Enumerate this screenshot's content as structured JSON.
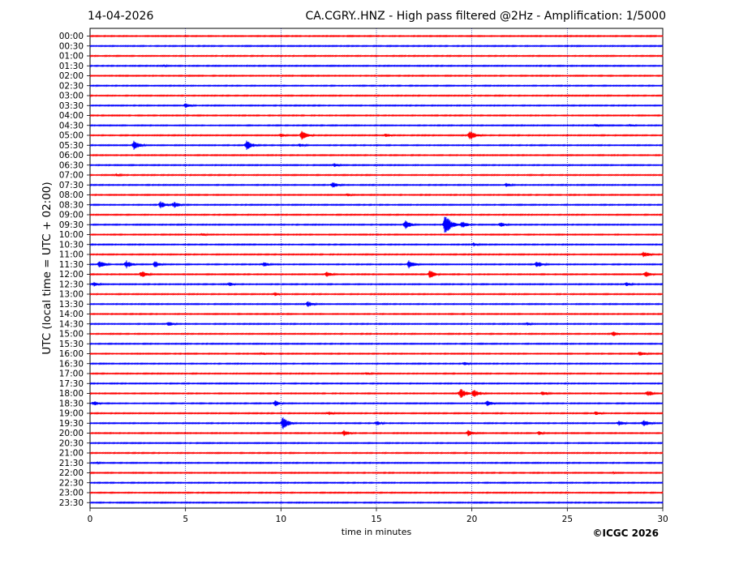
{
  "header": {
    "date": "14-04-2026",
    "title": "CA.CGRY..HNZ - High pass filtered @2Hz - Amplification: 1/5000"
  },
  "credit": "©ICGC 2026",
  "chart_data": {
    "type": "line",
    "title": "CA.CGRY..HNZ - High pass filtered @2Hz - Amplification: 1/5000",
    "xlabel": "time in minutes",
    "ylabel": "UTC (local time = UTC + 02:00)",
    "xlim": [
      0,
      30
    ],
    "xticks": [
      0,
      5,
      10,
      15,
      20,
      25,
      30
    ],
    "grid": "vertical dotted lines at 5, 10, 15, 20, 25",
    "trace_colors": [
      "#ff0000",
      "#0000ff"
    ],
    "rows": [
      "00:00",
      "00:30",
      "01:00",
      "01:30",
      "02:00",
      "02:30",
      "03:00",
      "03:30",
      "04:00",
      "04:30",
      "05:00",
      "05:30",
      "06:00",
      "06:30",
      "07:00",
      "07:30",
      "08:00",
      "08:30",
      "09:00",
      "09:30",
      "10:00",
      "10:30",
      "11:00",
      "11:30",
      "12:00",
      "12:30",
      "13:00",
      "13:30",
      "14:00",
      "14:30",
      "15:00",
      "15:30",
      "16:00",
      "16:30",
      "17:00",
      "17:30",
      "18:00",
      "18:30",
      "19:00",
      "19:30",
      "20:00",
      "20:30",
      "21:00",
      "21:30",
      "22:00",
      "22:30",
      "23:00",
      "23:30"
    ],
    "events": [
      {
        "row": "01:30",
        "t": 3.9,
        "amp": 0.2
      },
      {
        "row": "03:30",
        "t": 5.0,
        "amp": 0.5
      },
      {
        "row": "04:30",
        "t": 26.5,
        "amp": 0.3
      },
      {
        "row": "04:30",
        "t": 28.3,
        "amp": 0.3
      },
      {
        "row": "05:00",
        "t": 10.0,
        "amp": 0.4
      },
      {
        "row": "05:00",
        "t": 11.1,
        "amp": 0.9
      },
      {
        "row": "05:00",
        "t": 15.5,
        "amp": 0.4
      },
      {
        "row": "05:00",
        "t": 19.9,
        "amp": 1.0
      },
      {
        "row": "05:30",
        "t": 2.3,
        "amp": 0.9
      },
      {
        "row": "05:30",
        "t": 8.2,
        "amp": 1.0
      },
      {
        "row": "05:30",
        "t": 11.0,
        "amp": 0.4
      },
      {
        "row": "06:30",
        "t": 12.8,
        "amp": 0.4
      },
      {
        "row": "07:00",
        "t": 1.4,
        "amp": 0.3
      },
      {
        "row": "07:30",
        "t": 12.7,
        "amp": 0.6
      },
      {
        "row": "07:30",
        "t": 21.8,
        "amp": 0.4
      },
      {
        "row": "08:00",
        "t": 13.5,
        "amp": 0.3
      },
      {
        "row": "08:30",
        "t": 3.7,
        "amp": 0.7
      },
      {
        "row": "08:30",
        "t": 4.4,
        "amp": 0.6
      },
      {
        "row": "09:30",
        "t": 16.5,
        "amp": 0.9
      },
      {
        "row": "09:30",
        "t": 18.6,
        "amp": 2.0
      },
      {
        "row": "09:30",
        "t": 19.5,
        "amp": 0.7
      },
      {
        "row": "09:30",
        "t": 21.5,
        "amp": 0.5
      },
      {
        "row": "10:00",
        "t": 5.9,
        "amp": 0.3
      },
      {
        "row": "10:30",
        "t": 20.1,
        "amp": 0.4
      },
      {
        "row": "11:00",
        "t": 29.0,
        "amp": 0.6
      },
      {
        "row": "11:30",
        "t": 0.5,
        "amp": 0.7
      },
      {
        "row": "11:30",
        "t": 1.9,
        "amp": 0.8
      },
      {
        "row": "11:30",
        "t": 3.4,
        "amp": 0.7
      },
      {
        "row": "11:30",
        "t": 9.1,
        "amp": 0.5
      },
      {
        "row": "11:30",
        "t": 16.7,
        "amp": 0.8
      },
      {
        "row": "11:30",
        "t": 23.4,
        "amp": 0.7
      },
      {
        "row": "12:00",
        "t": 2.7,
        "amp": 0.7
      },
      {
        "row": "12:00",
        "t": 12.4,
        "amp": 0.5
      },
      {
        "row": "12:00",
        "t": 17.8,
        "amp": 0.8
      },
      {
        "row": "12:00",
        "t": 29.1,
        "amp": 0.6
      },
      {
        "row": "12:30",
        "t": 0.2,
        "amp": 0.5
      },
      {
        "row": "12:30",
        "t": 7.3,
        "amp": 0.4
      },
      {
        "row": "12:30",
        "t": 28.1,
        "amp": 0.4
      },
      {
        "row": "13:00",
        "t": 9.7,
        "amp": 0.4
      },
      {
        "row": "13:30",
        "t": 11.4,
        "amp": 0.6
      },
      {
        "row": "14:30",
        "t": 4.1,
        "amp": 0.5
      },
      {
        "row": "14:30",
        "t": 22.9,
        "amp": 0.3
      },
      {
        "row": "15:00",
        "t": 27.4,
        "amp": 0.5
      },
      {
        "row": "16:00",
        "t": 9.0,
        "amp": 0.3
      },
      {
        "row": "16:00",
        "t": 28.8,
        "amp": 0.5
      },
      {
        "row": "16:30",
        "t": 19.6,
        "amp": 0.4
      },
      {
        "row": "17:00",
        "t": 14.5,
        "amp": 0.3
      },
      {
        "row": "18:00",
        "t": 19.4,
        "amp": 1.0
      },
      {
        "row": "18:00",
        "t": 20.1,
        "amp": 0.9
      },
      {
        "row": "18:00",
        "t": 23.7,
        "amp": 0.5
      },
      {
        "row": "18:00",
        "t": 29.2,
        "amp": 0.6
      },
      {
        "row": "18:30",
        "t": 0.2,
        "amp": 0.5
      },
      {
        "row": "18:30",
        "t": 9.7,
        "amp": 0.6
      },
      {
        "row": "18:30",
        "t": 20.8,
        "amp": 0.6
      },
      {
        "row": "19:00",
        "t": 12.5,
        "amp": 0.4
      },
      {
        "row": "19:00",
        "t": 26.5,
        "amp": 0.4
      },
      {
        "row": "19:30",
        "t": 10.1,
        "amp": 1.2
      },
      {
        "row": "19:30",
        "t": 15.0,
        "amp": 0.5
      },
      {
        "row": "19:30",
        "t": 27.7,
        "amp": 0.5
      },
      {
        "row": "19:30",
        "t": 29.0,
        "amp": 0.8
      },
      {
        "row": "20:00",
        "t": 13.3,
        "amp": 0.6
      },
      {
        "row": "20:00",
        "t": 19.8,
        "amp": 0.6
      },
      {
        "row": "20:00",
        "t": 23.5,
        "amp": 0.4
      },
      {
        "row": "21:30",
        "t": 0.4,
        "amp": 0.2
      },
      {
        "row": "22:00",
        "t": 27.4,
        "amp": 0.2
      }
    ]
  }
}
